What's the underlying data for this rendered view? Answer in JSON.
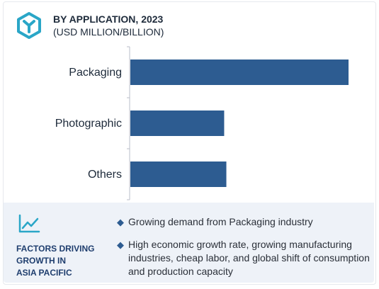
{
  "header": {
    "title": "BY APPLICATION, 2023",
    "subtitle": "(USD MILLION/BILLION)",
    "logo_icon": "cube-hexagon-icon"
  },
  "chart_data": {
    "type": "bar",
    "orientation": "horizontal",
    "categories": [
      "Packaging",
      "Photographic",
      "Others"
    ],
    "values": [
      100,
      43,
      44
    ],
    "value_note": "relative bar lengths; no numeric axis shown",
    "title": "BY APPLICATION, 2023",
    "subtitle": "(USD MILLION/BILLION)",
    "xlim": [
      0,
      100
    ],
    "bar_color": "#2d5c91",
    "grid": false,
    "legend": "none"
  },
  "factors": {
    "icon": "trend-line-icon",
    "title_lines": [
      "FACTORS DRIVING",
      "GROWTH IN",
      "ASIA PACIFIC"
    ],
    "items": [
      "Growing demand from Packaging industry",
      "High economic growth rate, growing manufacturing industries, cheap labor, and global shift of consumption and production capacity"
    ],
    "accent_color": "#1f3e6e",
    "background_color": "#eef2f8"
  }
}
